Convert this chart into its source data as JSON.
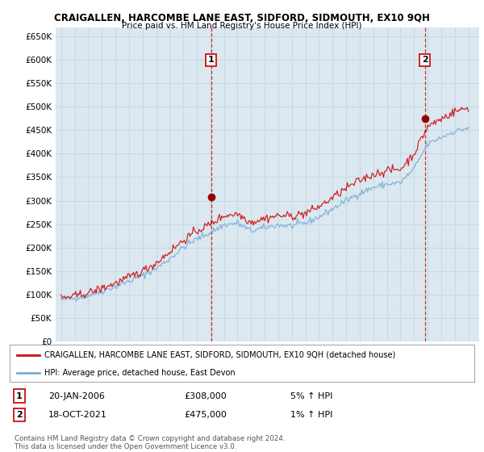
{
  "title": "CRAIGALLEN, HARCOMBE LANE EAST, SIDFORD, SIDMOUTH, EX10 9QH",
  "subtitle": "Price paid vs. HM Land Registry's House Price Index (HPI)",
  "ytick_values": [
    0,
    50000,
    100000,
    150000,
    200000,
    250000,
    300000,
    350000,
    400000,
    450000,
    500000,
    550000,
    600000,
    650000
  ],
  "hpi_color": "#7bafd4",
  "price_color": "#cc1111",
  "marker_color": "#990000",
  "vline_color": "#cc1111",
  "grid_color": "#c8d8e8",
  "chart_bg_color": "#dce8f0",
  "background_color": "#ffffff",
  "legend_label_price": "CRAIGALLEN, HARCOMBE LANE EAST, SIDFORD, SIDMOUTH, EX10 9QH (detached house)",
  "legend_label_hpi": "HPI: Average price, detached house, East Devon",
  "transaction1_date": "20-JAN-2006",
  "transaction1_price": "£308,000",
  "transaction1_hpi": "5% ↑ HPI",
  "transaction1_x": 2006.05,
  "transaction1_y": 308000,
  "transaction2_date": "18-OCT-2021",
  "transaction2_price": "£475,000",
  "transaction2_hpi": "1% ↑ HPI",
  "transaction2_x": 2021.8,
  "transaction2_y": 475000,
  "footer": "Contains HM Land Registry data © Crown copyright and database right 2024.\nThis data is licensed under the Open Government Licence v3.0.",
  "ylim": [
    0,
    670000
  ],
  "xlim_left": 1994.6,
  "xlim_right": 2025.8
}
